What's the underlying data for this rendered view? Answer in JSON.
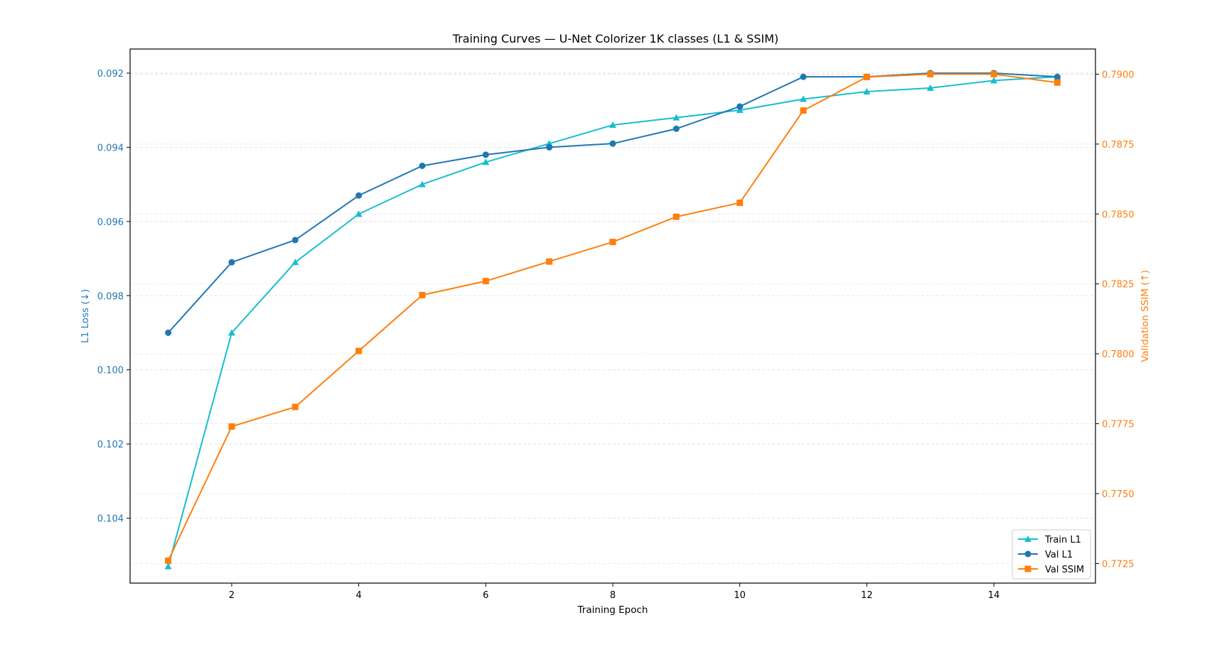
{
  "chart_data": {
    "type": "line",
    "title": "Training Curves — U-Net Colorizer 1K classes (L1 & SSIM)",
    "xlabel": "Training Epoch",
    "ylabel_left": "L1 Loss (↓)",
    "ylabel_right": "Validation SSIM (↑)",
    "x": [
      1,
      2,
      3,
      4,
      5,
      6,
      7,
      8,
      9,
      10,
      11,
      12,
      13,
      14,
      15
    ],
    "x_ticks": [
      2,
      4,
      6,
      8,
      10,
      12,
      14
    ],
    "xlim": [
      0.4,
      15.6
    ],
    "left_axis": {
      "inverted": true,
      "ylim": [
        0.09135,
        0.10575
      ],
      "ticks": [
        0.092,
        0.094,
        0.096,
        0.098,
        0.1,
        0.102,
        0.104
      ],
      "tick_labels": [
        "0.092",
        "0.094",
        "0.096",
        "0.098",
        "0.100",
        "0.102",
        "0.104"
      ],
      "color": "#1f77b4"
    },
    "right_axis": {
      "ylim": [
        0.7718,
        0.7909
      ],
      "ticks": [
        0.7725,
        0.775,
        0.7775,
        0.78,
        0.7825,
        0.785,
        0.7875,
        0.79
      ],
      "tick_labels": [
        "0.7725",
        "0.7750",
        "0.7775",
        "0.7800",
        "0.7825",
        "0.7850",
        "0.7875",
        "0.7900"
      ],
      "color": "#ff7f0e"
    },
    "grid": true,
    "legend_position": "bottom-right",
    "series": [
      {
        "name": "Train L1",
        "axis": "left",
        "color": "#17becf",
        "marker": "triangle",
        "values": [
          0.1053,
          0.099,
          0.0971,
          0.0958,
          0.095,
          0.0944,
          0.0939,
          0.0934,
          0.0932,
          0.093,
          0.0927,
          0.0925,
          0.0924,
          0.0922,
          0.0921
        ]
      },
      {
        "name": "Val L1",
        "axis": "left",
        "color": "#1f77b4",
        "marker": "circle",
        "values": [
          0.099,
          0.0971,
          0.0965,
          0.0953,
          0.0945,
          0.0942,
          0.094,
          0.0939,
          0.0935,
          0.0929,
          0.0921,
          0.0921,
          0.092,
          0.092,
          0.0921
        ]
      },
      {
        "name": "Val SSIM",
        "axis": "right",
        "color": "#ff7f0e",
        "marker": "square",
        "values": [
          0.7726,
          0.7774,
          0.7781,
          0.7801,
          0.7821,
          0.7826,
          0.7833,
          0.784,
          0.7849,
          0.7854,
          0.7887,
          0.7899,
          0.79,
          0.79,
          0.7897
        ]
      }
    ]
  }
}
